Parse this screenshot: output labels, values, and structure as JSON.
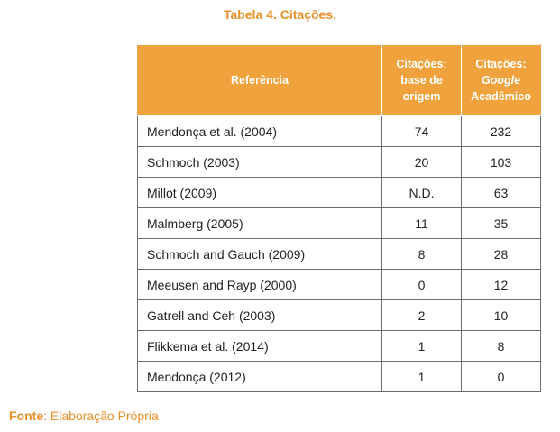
{
  "caption": "Tabela 4. Citações.",
  "table": {
    "headers": {
      "reference": "Referência",
      "base_line1": "Citações:",
      "base_line2": "base de",
      "base_line3": "origem",
      "google_line1": "Citações:",
      "google_line2": "Google",
      "google_line3": "Acadêmico"
    },
    "rows": [
      {
        "reference": "Mendonça et al. (2004)",
        "base": "74",
        "google": "232"
      },
      {
        "reference": "Schmoch (2003)",
        "base": "20",
        "google": "103"
      },
      {
        "reference": "Millot (2009)",
        "base": "N.D.",
        "google": "63"
      },
      {
        "reference": "Malmberg (2005)",
        "base": "11",
        "google": "35"
      },
      {
        "reference": "Schmoch and Gauch (2009)",
        "base": "8",
        "google": "28"
      },
      {
        "reference": "Meeusen and Rayp (2000)",
        "base": "0",
        "google": "12"
      },
      {
        "reference": "Gatrell and Ceh (2003)",
        "base": "2",
        "google": "10"
      },
      {
        "reference": "Flikkema et al. (2014)",
        "base": "1",
        "google": "8"
      },
      {
        "reference": "Mendonça (2012)",
        "base": "1",
        "google": "0"
      }
    ]
  },
  "source": {
    "label": "Fonte",
    "text": ": Elaboração Própria"
  },
  "colors": {
    "accent": "#e8902a",
    "header_fill": "#f0a23c"
  }
}
